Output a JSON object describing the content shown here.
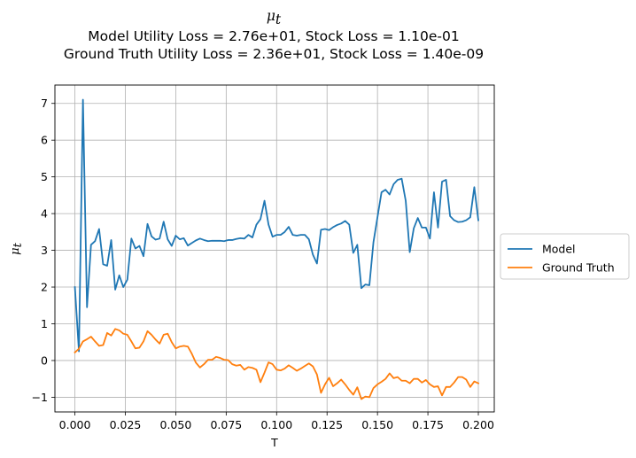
{
  "chart_data": {
    "type": "line",
    "title": {
      "symbol": "μ",
      "subscript": "t",
      "line2": "Model Utility Loss = 2.76e+01, Stock Loss = 1.10e-01",
      "line3": "Ground Truth Utility Loss = 2.36e+01, Stock Loss = 1.40e-09"
    },
    "xlabel": "T",
    "ylabel": {
      "symbol": "μ",
      "subscript": "t"
    },
    "xlim": [
      -0.0099,
      0.2079
    ],
    "ylim": [
      -1.4,
      7.5
    ],
    "x_ticks": [
      0.0,
      0.025,
      0.05,
      0.075,
      0.1,
      0.125,
      0.15,
      0.175,
      0.2
    ],
    "x_tick_labels": [
      "0.000",
      "0.025",
      "0.050",
      "0.075",
      "0.100",
      "0.125",
      "0.150",
      "0.175",
      "0.200"
    ],
    "y_ticks": [
      -1,
      0,
      1,
      2,
      3,
      4,
      5,
      6,
      7
    ],
    "y_tick_labels": [
      "−1",
      "0",
      "1",
      "2",
      "3",
      "4",
      "5",
      "6",
      "7"
    ],
    "grid": true,
    "legend_position": "center-right-outside",
    "series": [
      {
        "name": "Model",
        "color": "#1f77b4",
        "x_start": 0.0,
        "x_step": 0.002,
        "values": [
          2.0,
          0.25,
          7.1,
          1.45,
          3.15,
          3.25,
          3.58,
          2.62,
          2.58,
          3.28,
          1.93,
          2.32,
          2.0,
          2.2,
          3.32,
          3.05,
          3.12,
          2.84,
          3.72,
          3.38,
          3.29,
          3.32,
          3.78,
          3.3,
          3.12,
          3.4,
          3.3,
          3.33,
          3.13,
          3.2,
          3.27,
          3.32,
          3.28,
          3.25,
          3.26,
          3.26,
          3.26,
          3.25,
          3.28,
          3.28,
          3.31,
          3.33,
          3.32,
          3.42,
          3.35,
          3.7,
          3.85,
          4.35,
          3.7,
          3.37,
          3.42,
          3.42,
          3.5,
          3.64,
          3.42,
          3.4,
          3.42,
          3.42,
          3.3,
          2.88,
          2.64,
          3.56,
          3.58,
          3.55,
          3.63,
          3.69,
          3.73,
          3.8,
          3.7,
          2.93,
          3.15,
          1.97,
          2.07,
          2.05,
          3.22,
          3.9,
          4.58,
          4.65,
          4.52,
          4.8,
          4.92,
          4.95,
          4.35,
          2.95,
          3.6,
          3.88,
          3.62,
          3.62,
          3.32,
          4.58,
          3.62,
          4.87,
          4.92,
          3.93,
          3.82,
          3.77,
          3.78,
          3.82,
          3.9,
          4.72,
          3.82
        ]
      },
      {
        "name": "Ground Truth",
        "color": "#ff7f0e",
        "x_start": 0.0,
        "x_step": 0.002,
        "values": [
          0.22,
          0.32,
          0.52,
          0.58,
          0.65,
          0.52,
          0.4,
          0.42,
          0.75,
          0.68,
          0.86,
          0.82,
          0.73,
          0.7,
          0.52,
          0.33,
          0.35,
          0.52,
          0.8,
          0.7,
          0.57,
          0.46,
          0.7,
          0.73,
          0.5,
          0.33,
          0.38,
          0.4,
          0.38,
          0.18,
          -0.06,
          -0.19,
          -0.1,
          0.02,
          0.02,
          0.1,
          0.07,
          0.02,
          0.01,
          -0.1,
          -0.14,
          -0.12,
          -0.25,
          -0.18,
          -0.2,
          -0.25,
          -0.59,
          -0.33,
          -0.05,
          -0.1,
          -0.25,
          -0.27,
          -0.22,
          -0.13,
          -0.2,
          -0.28,
          -0.22,
          -0.15,
          -0.08,
          -0.16,
          -0.38,
          -0.88,
          -0.65,
          -0.47,
          -0.7,
          -0.62,
          -0.52,
          -0.65,
          -0.8,
          -0.93,
          -0.73,
          -1.05,
          -0.98,
          -1.0,
          -0.75,
          -0.65,
          -0.58,
          -0.5,
          -0.35,
          -0.48,
          -0.45,
          -0.55,
          -0.55,
          -0.62,
          -0.5,
          -0.5,
          -0.6,
          -0.53,
          -0.65,
          -0.72,
          -0.7,
          -0.95,
          -0.72,
          -0.72,
          -0.6,
          -0.45,
          -0.45,
          -0.52,
          -0.72,
          -0.57,
          -0.62
        ]
      }
    ]
  }
}
